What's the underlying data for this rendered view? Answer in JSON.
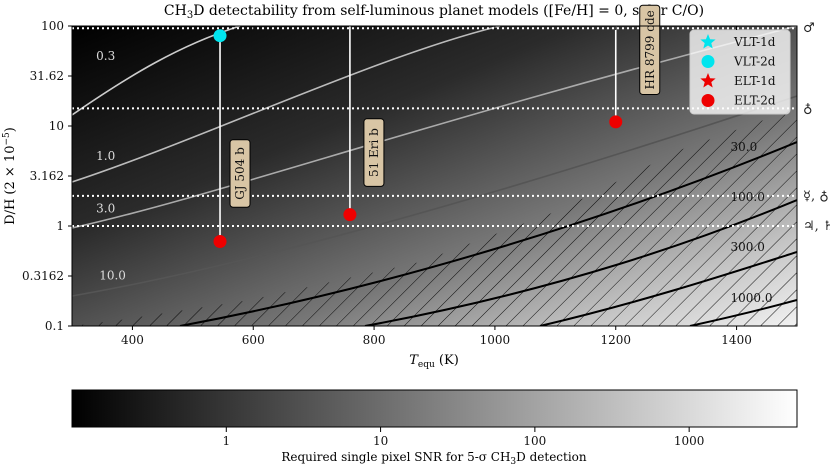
{
  "chart_data": {
    "type": "scatter",
    "title": "CH₃D detectability from self-luminous planet models ([Fe/H] = 0, solar C/O)",
    "title_parts": {
      "pre": "CH",
      "sub": "3",
      "post": "D detectability from self-luminous planet models ([Fe/H] = 0, solar C/O)"
    },
    "xlabel": "T_equ (K)",
    "xlabel_parts": {
      "pre": "T",
      "sub": "equ",
      "post": " (K)"
    },
    "ylabel": "D/H (2 × 10⁻⁵)",
    "ylabel_parts": {
      "pre": "D/H (2 × 10",
      "sup": "−5",
      "post": ")"
    },
    "xlim": [
      300,
      1500
    ],
    "ylim": [
      0.1,
      100
    ],
    "yscale": "log",
    "x_ticks": [
      400,
      600,
      800,
      1000,
      1200,
      1400
    ],
    "x_tick_labels": [
      "400",
      "600",
      "800",
      "1000",
      "1200",
      "1400"
    ],
    "y_ticks": [
      0.1,
      0.3162,
      1,
      3.162,
      10,
      31.62,
      100
    ],
    "y_tick_labels": [
      "0.1",
      "0.3162",
      "1",
      "3.162",
      "10",
      "31.62",
      "100"
    ],
    "contour_levels": [
      "0.3",
      "1.0",
      "3.0",
      "10.0",
      "30.0",
      "100.0",
      "300.0",
      "1000.0"
    ],
    "contour_label_positions": [
      {
        "label": "0.3",
        "x": 340,
        "y": 50
      },
      {
        "label": "1.0",
        "x": 340,
        "y": 5
      },
      {
        "label": "3.0",
        "x": 340,
        "y": 1.5
      },
      {
        "label": "10.0",
        "x": 345,
        "y": 0.32
      },
      {
        "label": "30.0",
        "x": 1390,
        "y": 6.2
      },
      {
        "label": "100.0",
        "x": 1390,
        "y": 1.95
      },
      {
        "label": "300.0",
        "x": 1390,
        "y": 0.62
      },
      {
        "label": "1000.0",
        "x": 1390,
        "y": 0.19
      }
    ],
    "reference_lines": [
      {
        "y": 95,
        "symbol": "♂"
      },
      {
        "y": 15,
        "symbol": "♁"
      },
      {
        "y": 2.0,
        "symbol": "☿, ♁"
      },
      {
        "y": 1.0,
        "symbol": "♃, ♄"
      }
    ],
    "planets": [
      {
        "name": "GJ 504 b",
        "x": 545,
        "y": 0.7,
        "y_top": 80
      },
      {
        "name": "51 Eri b",
        "x": 760,
        "y": 1.3,
        "y_top": 100
      },
      {
        "name": "HR 8799 cde",
        "x": 1200,
        "y": 11,
        "y_top": 100
      }
    ],
    "series": [
      {
        "name": "VLT-1d",
        "marker": "star",
        "color": "#00e5ee",
        "points": []
      },
      {
        "name": "VLT-2d",
        "marker": "circle",
        "color": "#00e5ee",
        "points": [
          {
            "x": 545,
            "y": 80
          }
        ]
      },
      {
        "name": "ELT-1d",
        "marker": "star",
        "color": "#ee0000",
        "points": []
      },
      {
        "name": "ELT-2d",
        "marker": "circle",
        "color": "#ee0000",
        "points": [
          {
            "x": 545,
            "y": 0.7
          },
          {
            "x": 760,
            "y": 1.3
          },
          {
            "x": 1200,
            "y": 11
          }
        ]
      }
    ],
    "legend_position": "top-right",
    "colorbar": {
      "label": "Required single pixel SNR for 5-σ CH₃D detection",
      "label_parts": {
        "pre": "Required single pixel SNR for 5-σ CH",
        "sub": "3",
        "post": "D detection"
      },
      "scale": "log",
      "range": [
        0.1,
        5000
      ],
      "ticks": [
        1,
        10,
        100,
        1000
      ],
      "tick_labels": [
        "1",
        "10",
        "100",
        "1000"
      ]
    }
  }
}
